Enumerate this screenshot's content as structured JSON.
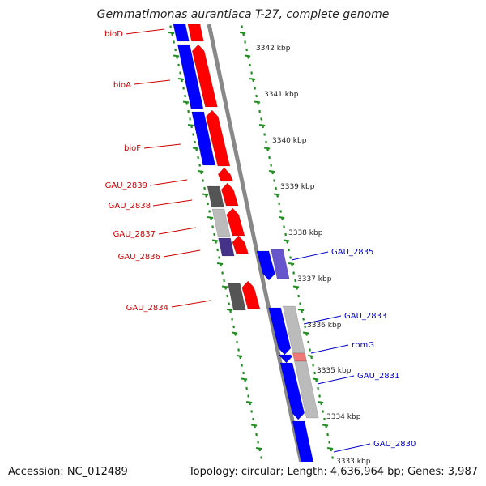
{
  "title": "Gemmatimonas aurantiaca T-27, complete genome",
  "footer": {
    "accession": "Accession: NC_012489",
    "summary": "Topology: circular; Length: 4,636,964 bp; Genes: 3,987"
  },
  "colors": {
    "forward_label": "#cc0000",
    "reverse_label": "#0000cc",
    "forward_gene": "#ff0000",
    "reverse_gene": "#0000ff",
    "backbone": "#888888",
    "tick_marks": "#228b22"
  },
  "ticks": [
    "3342 kbp",
    "3341 kbp",
    "3340 kbp",
    "3339 kbp",
    "3338 kbp",
    "3337 kbp",
    "3336 kbp",
    "3335 kbp",
    "3334 kbp",
    "3333 kbp"
  ],
  "forward_labels": [
    "bioD",
    "bioA",
    "bioF",
    "GAU_2839",
    "GAU_2838",
    "GAU_2837",
    "GAU_2836",
    "GAU_2834"
  ],
  "reverse_labels": [
    "GAU_2835",
    "GAU_2833",
    "rpmG",
    "GAU_2831",
    "GAU_2830"
  ]
}
